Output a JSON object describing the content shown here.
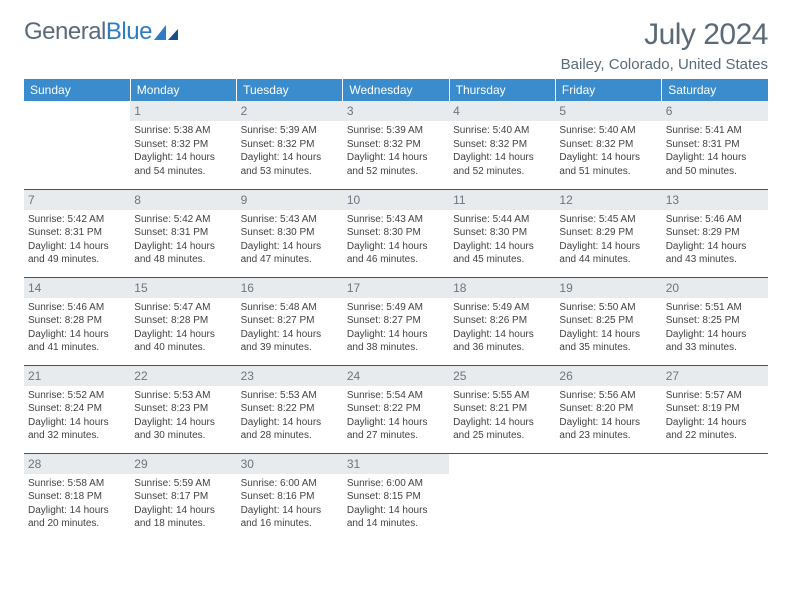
{
  "logo": {
    "word1": "General",
    "word2": "Blue"
  },
  "title": "July 2024",
  "location": "Bailey, Colorado, United States",
  "colors": {
    "header_bg": "#3b8ccc",
    "header_text": "#ffffff",
    "row_divider": "#2b5a87",
    "daynum_bg": "#e8ebed",
    "body_text": "#424242",
    "title_text": "#5a6a78"
  },
  "day_headers": [
    "Sunday",
    "Monday",
    "Tuesday",
    "Wednesday",
    "Thursday",
    "Friday",
    "Saturday"
  ],
  "weeks": [
    [
      {
        "blank": true
      },
      {
        "n": "1",
        "sr": "5:38 AM",
        "ss": "8:32 PM",
        "dl": "14 hours and 54 minutes."
      },
      {
        "n": "2",
        "sr": "5:39 AM",
        "ss": "8:32 PM",
        "dl": "14 hours and 53 minutes."
      },
      {
        "n": "3",
        "sr": "5:39 AM",
        "ss": "8:32 PM",
        "dl": "14 hours and 52 minutes."
      },
      {
        "n": "4",
        "sr": "5:40 AM",
        "ss": "8:32 PM",
        "dl": "14 hours and 52 minutes."
      },
      {
        "n": "5",
        "sr": "5:40 AM",
        "ss": "8:32 PM",
        "dl": "14 hours and 51 minutes."
      },
      {
        "n": "6",
        "sr": "5:41 AM",
        "ss": "8:31 PM",
        "dl": "14 hours and 50 minutes."
      }
    ],
    [
      {
        "n": "7",
        "sr": "5:42 AM",
        "ss": "8:31 PM",
        "dl": "14 hours and 49 minutes."
      },
      {
        "n": "8",
        "sr": "5:42 AM",
        "ss": "8:31 PM",
        "dl": "14 hours and 48 minutes."
      },
      {
        "n": "9",
        "sr": "5:43 AM",
        "ss": "8:30 PM",
        "dl": "14 hours and 47 minutes."
      },
      {
        "n": "10",
        "sr": "5:43 AM",
        "ss": "8:30 PM",
        "dl": "14 hours and 46 minutes."
      },
      {
        "n": "11",
        "sr": "5:44 AM",
        "ss": "8:30 PM",
        "dl": "14 hours and 45 minutes."
      },
      {
        "n": "12",
        "sr": "5:45 AM",
        "ss": "8:29 PM",
        "dl": "14 hours and 44 minutes."
      },
      {
        "n": "13",
        "sr": "5:46 AM",
        "ss": "8:29 PM",
        "dl": "14 hours and 43 minutes."
      }
    ],
    [
      {
        "n": "14",
        "sr": "5:46 AM",
        "ss": "8:28 PM",
        "dl": "14 hours and 41 minutes."
      },
      {
        "n": "15",
        "sr": "5:47 AM",
        "ss": "8:28 PM",
        "dl": "14 hours and 40 minutes."
      },
      {
        "n": "16",
        "sr": "5:48 AM",
        "ss": "8:27 PM",
        "dl": "14 hours and 39 minutes."
      },
      {
        "n": "17",
        "sr": "5:49 AM",
        "ss": "8:27 PM",
        "dl": "14 hours and 38 minutes."
      },
      {
        "n": "18",
        "sr": "5:49 AM",
        "ss": "8:26 PM",
        "dl": "14 hours and 36 minutes."
      },
      {
        "n": "19",
        "sr": "5:50 AM",
        "ss": "8:25 PM",
        "dl": "14 hours and 35 minutes."
      },
      {
        "n": "20",
        "sr": "5:51 AM",
        "ss": "8:25 PM",
        "dl": "14 hours and 33 minutes."
      }
    ],
    [
      {
        "n": "21",
        "sr": "5:52 AM",
        "ss": "8:24 PM",
        "dl": "14 hours and 32 minutes."
      },
      {
        "n": "22",
        "sr": "5:53 AM",
        "ss": "8:23 PM",
        "dl": "14 hours and 30 minutes."
      },
      {
        "n": "23",
        "sr": "5:53 AM",
        "ss": "8:22 PM",
        "dl": "14 hours and 28 minutes."
      },
      {
        "n": "24",
        "sr": "5:54 AM",
        "ss": "8:22 PM",
        "dl": "14 hours and 27 minutes."
      },
      {
        "n": "25",
        "sr": "5:55 AM",
        "ss": "8:21 PM",
        "dl": "14 hours and 25 minutes."
      },
      {
        "n": "26",
        "sr": "5:56 AM",
        "ss": "8:20 PM",
        "dl": "14 hours and 23 minutes."
      },
      {
        "n": "27",
        "sr": "5:57 AM",
        "ss": "8:19 PM",
        "dl": "14 hours and 22 minutes."
      }
    ],
    [
      {
        "n": "28",
        "sr": "5:58 AM",
        "ss": "8:18 PM",
        "dl": "14 hours and 20 minutes."
      },
      {
        "n": "29",
        "sr": "5:59 AM",
        "ss": "8:17 PM",
        "dl": "14 hours and 18 minutes."
      },
      {
        "n": "30",
        "sr": "6:00 AM",
        "ss": "8:16 PM",
        "dl": "14 hours and 16 minutes."
      },
      {
        "n": "31",
        "sr": "6:00 AM",
        "ss": "8:15 PM",
        "dl": "14 hours and 14 minutes."
      },
      {
        "blank": true
      },
      {
        "blank": true
      },
      {
        "blank": true
      }
    ]
  ],
  "labels": {
    "sunrise": "Sunrise:",
    "sunset": "Sunset:",
    "daylight": "Daylight:"
  }
}
